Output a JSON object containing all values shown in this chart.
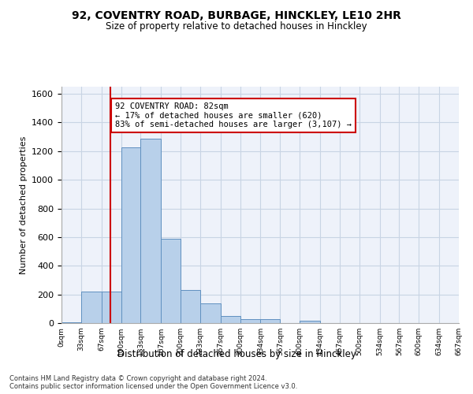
{
  "title": "92, COVENTRY ROAD, BURBAGE, HINCKLEY, LE10 2HR",
  "subtitle": "Size of property relative to detached houses in Hinckley",
  "xlabel": "Distribution of detached houses by size in Hinckley",
  "ylabel": "Number of detached properties",
  "footer_line1": "Contains HM Land Registry data © Crown copyright and database right 2024.",
  "footer_line2": "Contains public sector information licensed under the Open Government Licence v3.0.",
  "bar_edges": [
    0,
    33,
    67,
    100,
    133,
    167,
    200,
    233,
    267,
    300,
    334,
    367,
    400,
    434,
    467,
    500,
    534,
    567,
    600,
    634,
    667
  ],
  "bar_heights": [
    5,
    220,
    220,
    1225,
    1285,
    590,
    230,
    135,
    50,
    25,
    25,
    0,
    15,
    0,
    0,
    0,
    0,
    0,
    0,
    0
  ],
  "bar_color": "#b8d0ea",
  "bar_edge_color": "#6090c0",
  "grid_color": "#c8d4e4",
  "bg_color": "#eef2fa",
  "red_line_x": 82,
  "red_line_color": "#cc0000",
  "annotation_text": "92 COVENTRY ROAD: 82sqm\n← 17% of detached houses are smaller (620)\n83% of semi-detached houses are larger (3,107) →",
  "annotation_box_color": "#cc0000",
  "ylim": [
    0,
    1650
  ],
  "yticks": [
    0,
    200,
    400,
    600,
    800,
    1000,
    1200,
    1400,
    1600
  ],
  "tick_labels": [
    "0sqm",
    "33sqm",
    "67sqm",
    "100sqm",
    "133sqm",
    "167sqm",
    "200sqm",
    "233sqm",
    "267sqm",
    "300sqm",
    "334sqm",
    "367sqm",
    "400sqm",
    "434sqm",
    "467sqm",
    "500sqm",
    "534sqm",
    "567sqm",
    "600sqm",
    "634sqm",
    "667sqm"
  ]
}
